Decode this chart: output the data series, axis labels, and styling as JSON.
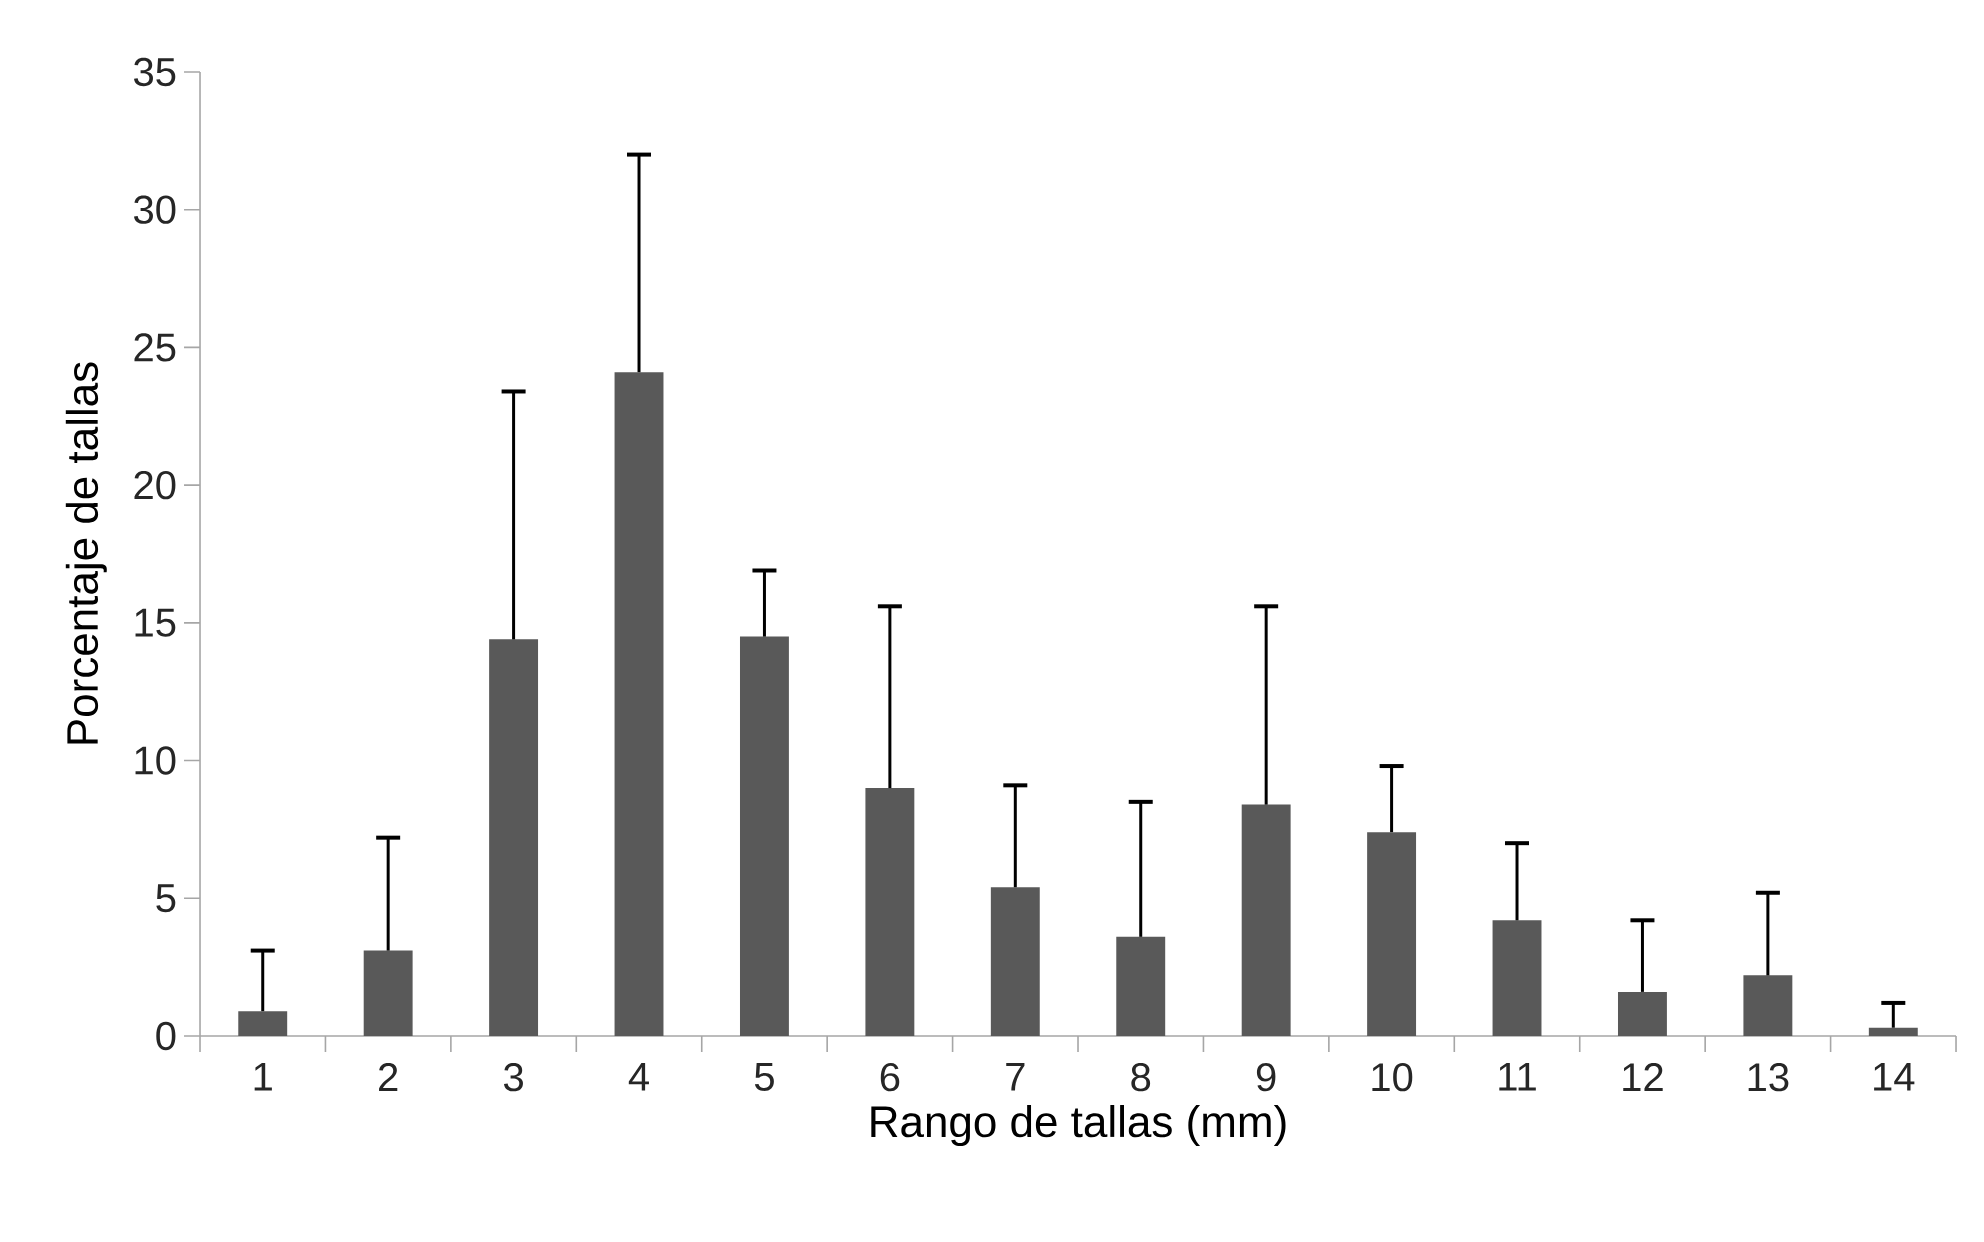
{
  "chart_data": {
    "type": "bar",
    "xlabel": "Rango de tallas (mm)",
    "ylabel": "Porcentaje de tallas",
    "categories": [
      "1",
      "2",
      "3",
      "4",
      "5",
      "6",
      "7",
      "8",
      "9",
      "10",
      "11",
      "12",
      "13",
      "14"
    ],
    "values": [
      0.9,
      3.1,
      14.4,
      24.1,
      14.5,
      9.0,
      5.4,
      3.6,
      8.4,
      7.4,
      4.2,
      1.6,
      2.2,
      0.3
    ],
    "errors": [
      [
        0.9,
        3.1
      ],
      [
        3.1,
        7.2
      ],
      [
        14.4,
        23.4
      ],
      [
        24.1,
        32.0
      ],
      [
        14.5,
        16.9
      ],
      [
        9.0,
        15.6
      ],
      [
        5.4,
        9.1
      ],
      [
        3.6,
        8.5
      ],
      [
        8.4,
        15.6
      ],
      [
        7.4,
        9.8
      ],
      [
        4.2,
        7.0
      ],
      [
        1.6,
        4.2
      ],
      [
        2.2,
        5.2
      ],
      [
        0.3,
        1.2
      ]
    ],
    "color": "#595959",
    "ylim": [
      0,
      35
    ],
    "yticks": [
      0,
      5,
      10,
      15,
      20,
      25,
      30,
      35
    ],
    "grid": false
  }
}
